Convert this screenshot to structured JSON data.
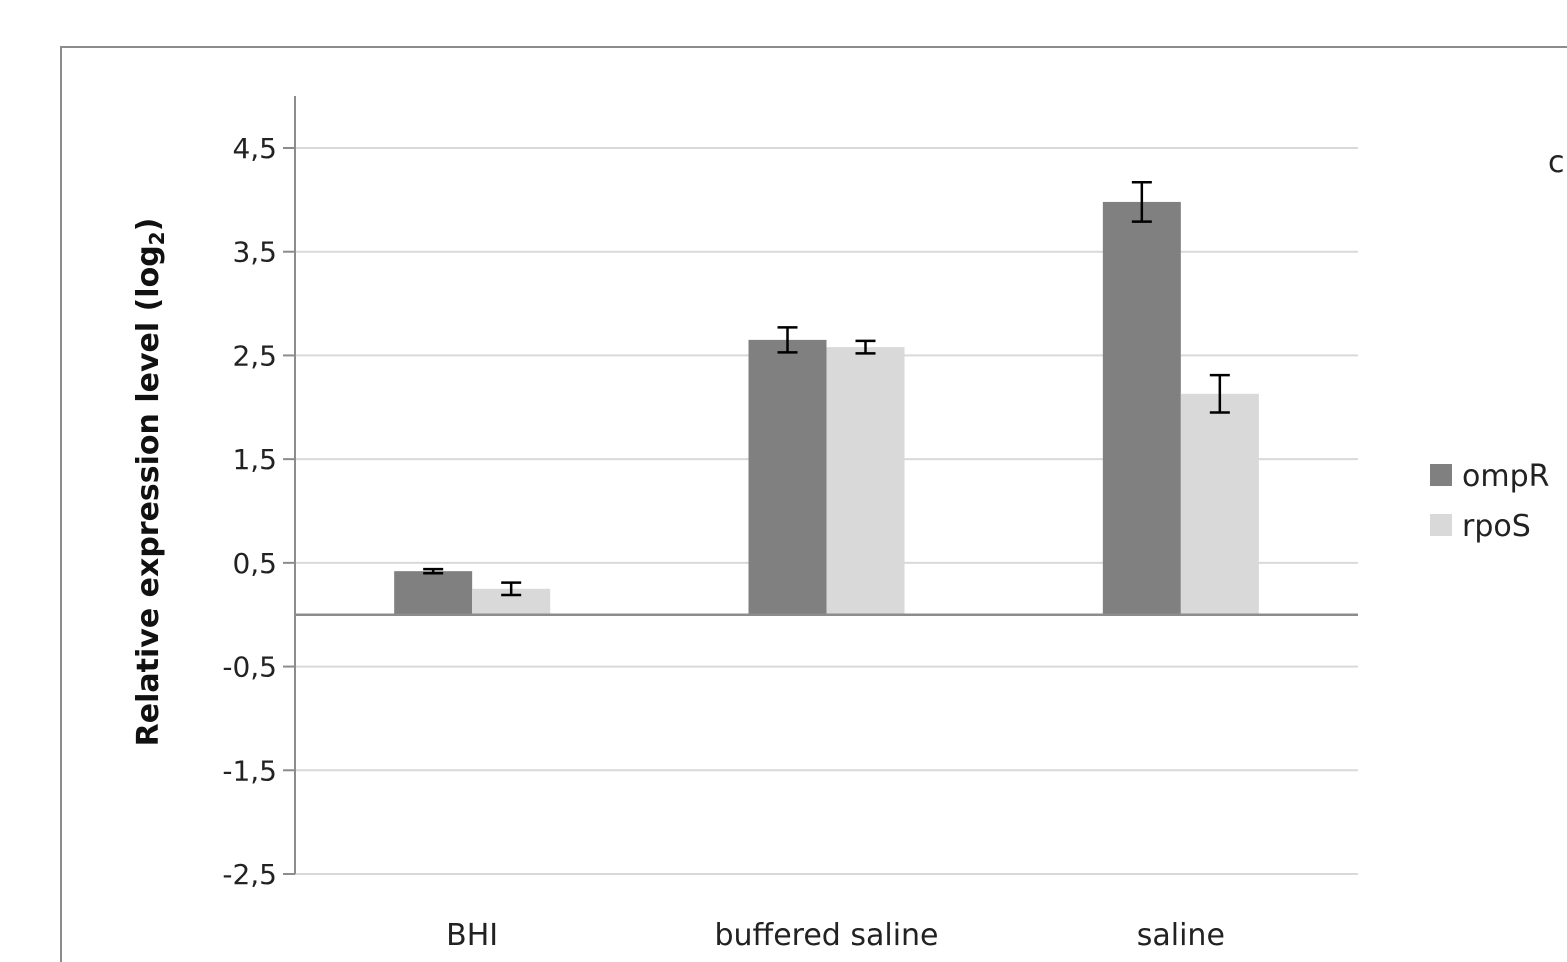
{
  "chart_data": {
    "type": "bar",
    "categories": [
      "BHI",
      "buffered saline",
      "saline"
    ],
    "series": [
      {
        "name": "ompR",
        "color": "#808080",
        "values": [
          0.42,
          2.65,
          3.98
        ],
        "errors": [
          0.02,
          0.12,
          0.19
        ]
      },
      {
        "name": "rpoS",
        "color": "#d9d9d9",
        "values": [
          0.25,
          2.58,
          2.13
        ],
        "errors": [
          0.06,
          0.06,
          0.18
        ]
      }
    ],
    "ylabel": "Relative expression level (log",
    "ylabel_subscript": "2",
    "ylabel_suffix": ")",
    "ylim": [
      -2.5,
      4.5
    ],
    "yticks": [
      4.5,
      3.5,
      2.5,
      1.5,
      0.5,
      -0.5,
      -1.5,
      -2.5
    ],
    "ytick_labels": [
      "4,5",
      "3,5",
      "2,5",
      "1,5",
      "0,5",
      "-0,5",
      "-1,5",
      "-2,5"
    ],
    "grid": true,
    "legend_position": "right",
    "corner_label": "c"
  }
}
